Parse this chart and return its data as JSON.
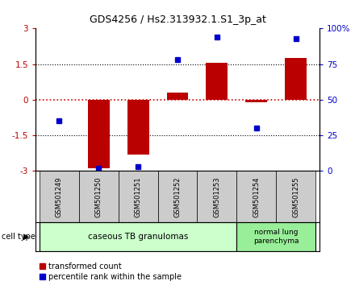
{
  "title": "GDS4256 / Hs2.313932.1.S1_3p_at",
  "samples": [
    "GSM501249",
    "GSM501250",
    "GSM501251",
    "GSM501252",
    "GSM501253",
    "GSM501254",
    "GSM501255"
  ],
  "red_bars": [
    0.0,
    -2.9,
    -2.3,
    0.3,
    1.55,
    -0.12,
    1.75
  ],
  "blue_dots_pct": [
    35,
    2,
    3,
    78,
    94,
    30,
    93
  ],
  "ylim_left": [
    -3,
    3
  ],
  "ylim_right": [
    0,
    100
  ],
  "left_ticks": [
    -3,
    -1.5,
    0,
    1.5,
    3
  ],
  "right_ticks": [
    0,
    25,
    50,
    75,
    100
  ],
  "left_tick_labels": [
    "-3",
    "-1.5",
    "0",
    "1.5",
    "3"
  ],
  "right_tick_labels": [
    "0",
    "25",
    "50",
    "75",
    "100%"
  ],
  "red_color": "#bb0000",
  "blue_color": "#0000cc",
  "group1_label": "caseous TB granulomas",
  "group2_label": "normal lung\nparenchyma",
  "group1_samples": [
    0,
    1,
    2,
    3,
    4
  ],
  "group2_samples": [
    5,
    6
  ],
  "group1_bg": "#ccffcc",
  "group2_bg": "#99ee99",
  "sample_bg": "#cccccc",
  "legend_red": "transformed count",
  "legend_blue": "percentile rank within the sample",
  "cell_type_label": "cell type",
  "bar_width": 0.55,
  "dotted_lines": [
    -1.5,
    0,
    1.5
  ],
  "zero_line_color": "#cc0000",
  "bg_color": "#ffffff"
}
